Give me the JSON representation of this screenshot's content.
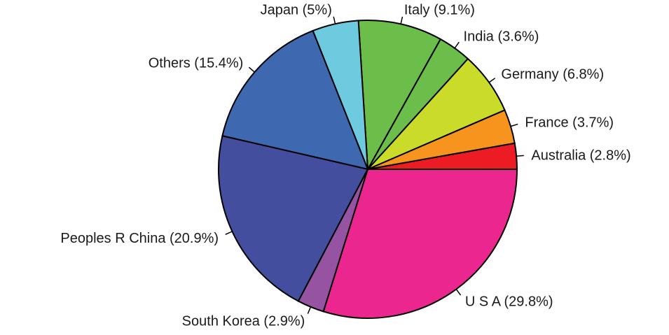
{
  "chart_data": {
    "type": "pie",
    "title": "",
    "start": "east, counter-clockwise",
    "slices": [
      {
        "label": "Australia (2.8%)",
        "value": 2.8,
        "color": "#ed1c24"
      },
      {
        "label": "France (3.7%)",
        "value": 3.7,
        "color": "#f7941d"
      },
      {
        "label": "Germany (6.8%)",
        "value": 6.8,
        "color": "#cbdb2a"
      },
      {
        "label": "India (3.6%)",
        "value": 3.6,
        "color": "#6cbe4b"
      },
      {
        "label": "Italy (9.1%)",
        "value": 9.1,
        "color": "#6cbe4b"
      },
      {
        "label": "Japan (5%)",
        "value": 5.0,
        "color": "#6dcadf"
      },
      {
        "label": "Others (15.4%)",
        "value": 15.4,
        "color": "#3e69b1"
      },
      {
        "label": "Peoples R China (20.9%)",
        "value": 20.9,
        "color": "#434e9e"
      },
      {
        "label": "South Korea (2.9%)",
        "value": 2.9,
        "color": "#9553a1"
      },
      {
        "label": "U S A (29.8%)",
        "value": 29.8,
        "color": "#ec268f"
      }
    ]
  }
}
